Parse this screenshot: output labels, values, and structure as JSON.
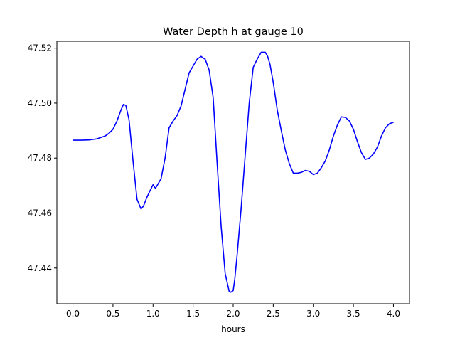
{
  "chart_data": {
    "type": "line",
    "title": "Water Depth h at gauge 10",
    "xlabel": "hours",
    "ylabel": "",
    "xlim": [
      -0.2,
      4.2
    ],
    "ylim": [
      47.427,
      47.5225
    ],
    "xticks": [
      0.0,
      0.5,
      1.0,
      1.5,
      2.0,
      2.5,
      3.0,
      3.5,
      4.0
    ],
    "xtick_labels": [
      "0.0",
      "0.5",
      "1.0",
      "1.5",
      "2.0",
      "2.5",
      "3.0",
      "3.5",
      "4.0"
    ],
    "yticks": [
      47.44,
      47.46,
      47.48,
      47.5,
      47.52
    ],
    "ytick_labels": [
      "47.44",
      "47.46",
      "47.48",
      "47.50",
      "47.52"
    ],
    "grid": false,
    "line_color": "#0000ff",
    "series": [
      {
        "x": [
          0.0,
          0.1,
          0.2,
          0.3,
          0.4,
          0.45,
          0.5,
          0.55,
          0.6,
          0.63,
          0.66,
          0.7,
          0.75,
          0.8,
          0.85,
          0.88,
          0.92,
          0.96,
          1.0,
          1.03,
          1.06,
          1.1,
          1.15,
          1.2,
          1.25,
          1.3,
          1.35,
          1.4,
          1.45,
          1.5,
          1.55,
          1.6,
          1.62,
          1.65,
          1.7,
          1.75,
          1.8,
          1.85,
          1.9,
          1.95,
          1.97,
          2.0,
          2.02,
          2.05,
          2.1,
          2.15,
          2.2,
          2.25,
          2.3,
          2.35,
          2.4,
          2.43,
          2.46,
          2.5,
          2.55,
          2.6,
          2.65,
          2.7,
          2.75,
          2.8,
          2.85,
          2.9,
          2.95,
          3.0,
          3.05,
          3.1,
          3.15,
          3.2,
          3.25,
          3.3,
          3.35,
          3.4,
          3.45,
          3.5,
          3.55,
          3.6,
          3.65,
          3.7,
          3.75,
          3.8,
          3.85,
          3.9,
          3.95,
          4.0
        ],
        "y": [
          47.4865,
          47.4865,
          47.4866,
          47.487,
          47.488,
          47.489,
          47.4905,
          47.4935,
          47.4975,
          47.4995,
          47.4992,
          47.494,
          47.479,
          47.465,
          47.4615,
          47.4625,
          47.4655,
          47.468,
          47.4703,
          47.469,
          47.4705,
          47.4725,
          47.48,
          47.491,
          47.4935,
          47.4955,
          47.499,
          47.505,
          47.511,
          47.5135,
          47.516,
          47.517,
          47.5165,
          47.516,
          47.512,
          47.502,
          47.478,
          47.455,
          47.438,
          47.4315,
          47.4312,
          47.4318,
          47.436,
          47.445,
          47.462,
          47.481,
          47.5,
          47.513,
          47.516,
          47.5185,
          47.5185,
          47.517,
          47.514,
          47.5075,
          47.4975,
          47.49,
          47.483,
          47.478,
          47.4745,
          47.4745,
          47.4748,
          47.4755,
          47.4752,
          47.474,
          47.4745,
          47.4765,
          47.479,
          47.483,
          47.488,
          47.492,
          47.495,
          47.4948,
          47.4935,
          47.4905,
          47.486,
          47.482,
          47.4795,
          47.48,
          47.4815,
          47.484,
          47.488,
          47.491,
          47.4925,
          47.493
        ]
      }
    ]
  }
}
